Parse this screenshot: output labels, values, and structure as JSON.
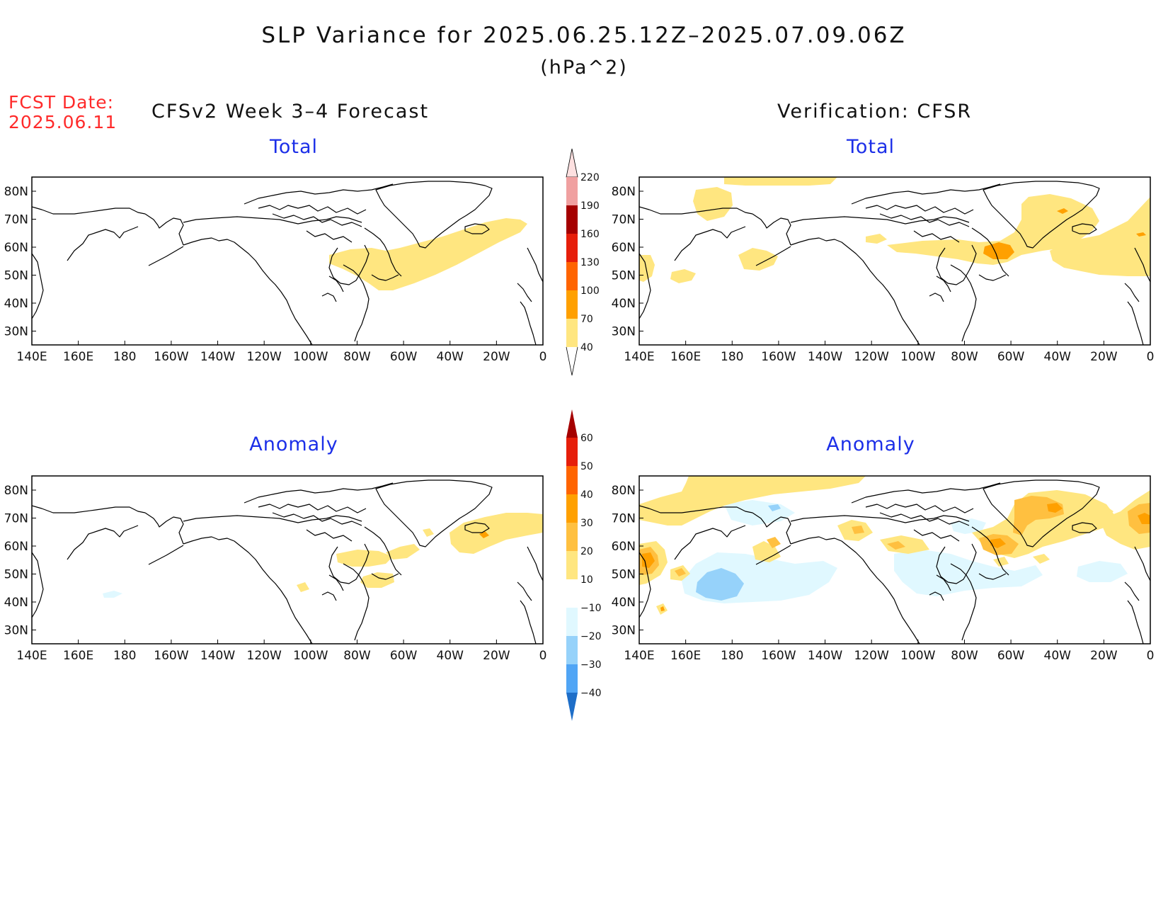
{
  "header": {
    "title": "SLP Variance for 2025.06.25.12Z–2025.07.09.06Z",
    "units": "(hPa^2)",
    "fcst_date_label": "FCST Date:",
    "fcst_date_value": "2025.06.11",
    "left_column_title": "CFSv2 Week 3–4 Forecast",
    "right_column_title": "Verification: CFSR"
  },
  "panels": [
    {
      "id": "forecast-total",
      "title": "Total"
    },
    {
      "id": "verification-total",
      "title": "Total"
    },
    {
      "id": "forecast-anomaly",
      "title": "Anomaly"
    },
    {
      "id": "verification-anomaly",
      "title": "Anomaly"
    }
  ],
  "axes": {
    "lon_ticks": [
      "140E",
      "160E",
      "180",
      "160W",
      "140W",
      "120W",
      "100W",
      "80W",
      "60W",
      "40W",
      "20W",
      "0"
    ],
    "lat_ticks": [
      "80N",
      "70N",
      "60N",
      "50N",
      "40N",
      "30N"
    ]
  },
  "colorbars": {
    "total": {
      "labels": [
        "40",
        "70",
        "100",
        "130",
        "160",
        "190",
        "220"
      ],
      "colors": [
        "#ffe680",
        "#ffa000",
        "#ff6400",
        "#e61e0a",
        "#a50000",
        "#f0a0a0",
        "#fde0e0"
      ]
    },
    "anomaly": {
      "labels": [
        "60",
        "50",
        "40",
        "30",
        "20",
        "10",
        "−10",
        "−20",
        "−30",
        "−40"
      ],
      "colors": [
        "#a50000",
        "#e61e0a",
        "#ff6400",
        "#ffa000",
        "#ffc040",
        "#ffe680",
        "#ffffff",
        "#e0f8ff",
        "#96d2fa",
        "#50a5f5",
        "#1e6ec8"
      ]
    }
  }
}
